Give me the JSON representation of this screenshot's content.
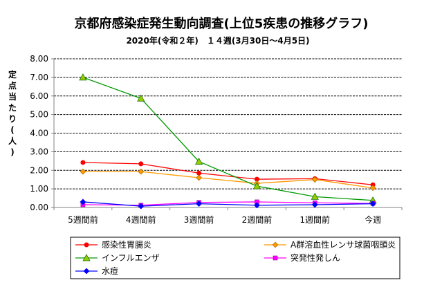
{
  "chart_data": {
    "type": "line",
    "title": "京都府感染症発生動向調査(上位5疾患の推移グラフ)",
    "subtitle": "2020年(令和２年)　１４週(3月30日～4月5日)",
    "ylabel": "定点当たり(人)",
    "xlabel": "",
    "ylim": [
      0,
      8
    ],
    "ytick_labels": [
      "0.00",
      "1.00",
      "2.00",
      "3.00",
      "4.00",
      "5.00",
      "6.00",
      "7.00",
      "8.00"
    ],
    "categories": [
      "5週間前",
      "4週間前",
      "3週間前",
      "2週間前",
      "1週間前",
      "今週"
    ],
    "grid": true,
    "legend_position": "bottom",
    "series": [
      {
        "name": "感染性胃腸炎",
        "values": [
          2.42,
          2.35,
          1.85,
          1.52,
          1.55,
          1.22
        ],
        "color": "#ff0000",
        "marker": "circle",
        "marker_color": "#ff0000"
      },
      {
        "name": "A群溶血性レンサ球菌咽頭炎",
        "values": [
          1.93,
          1.93,
          1.6,
          1.3,
          1.5,
          1.05
        ],
        "color": "#ff9900",
        "marker": "diamond",
        "marker_color": "#ff9900"
      },
      {
        "name": "インフルエンザ",
        "values": [
          7.0,
          5.87,
          2.47,
          1.15,
          0.58,
          0.38
        ],
        "color": "#009900",
        "marker": "triangle",
        "marker_color": "#99cc00"
      },
      {
        "name": "突発性発しん",
        "values": [
          0.15,
          0.12,
          0.27,
          0.3,
          0.25,
          0.22
        ],
        "color": "#ff00ff",
        "marker": "square",
        "marker_color": "#ff00ff"
      },
      {
        "name": "水痘",
        "values": [
          0.3,
          0.07,
          0.2,
          0.12,
          0.15,
          0.2
        ],
        "color": "#0000ff",
        "marker": "diamond",
        "marker_color": "#0000ff"
      }
    ]
  }
}
